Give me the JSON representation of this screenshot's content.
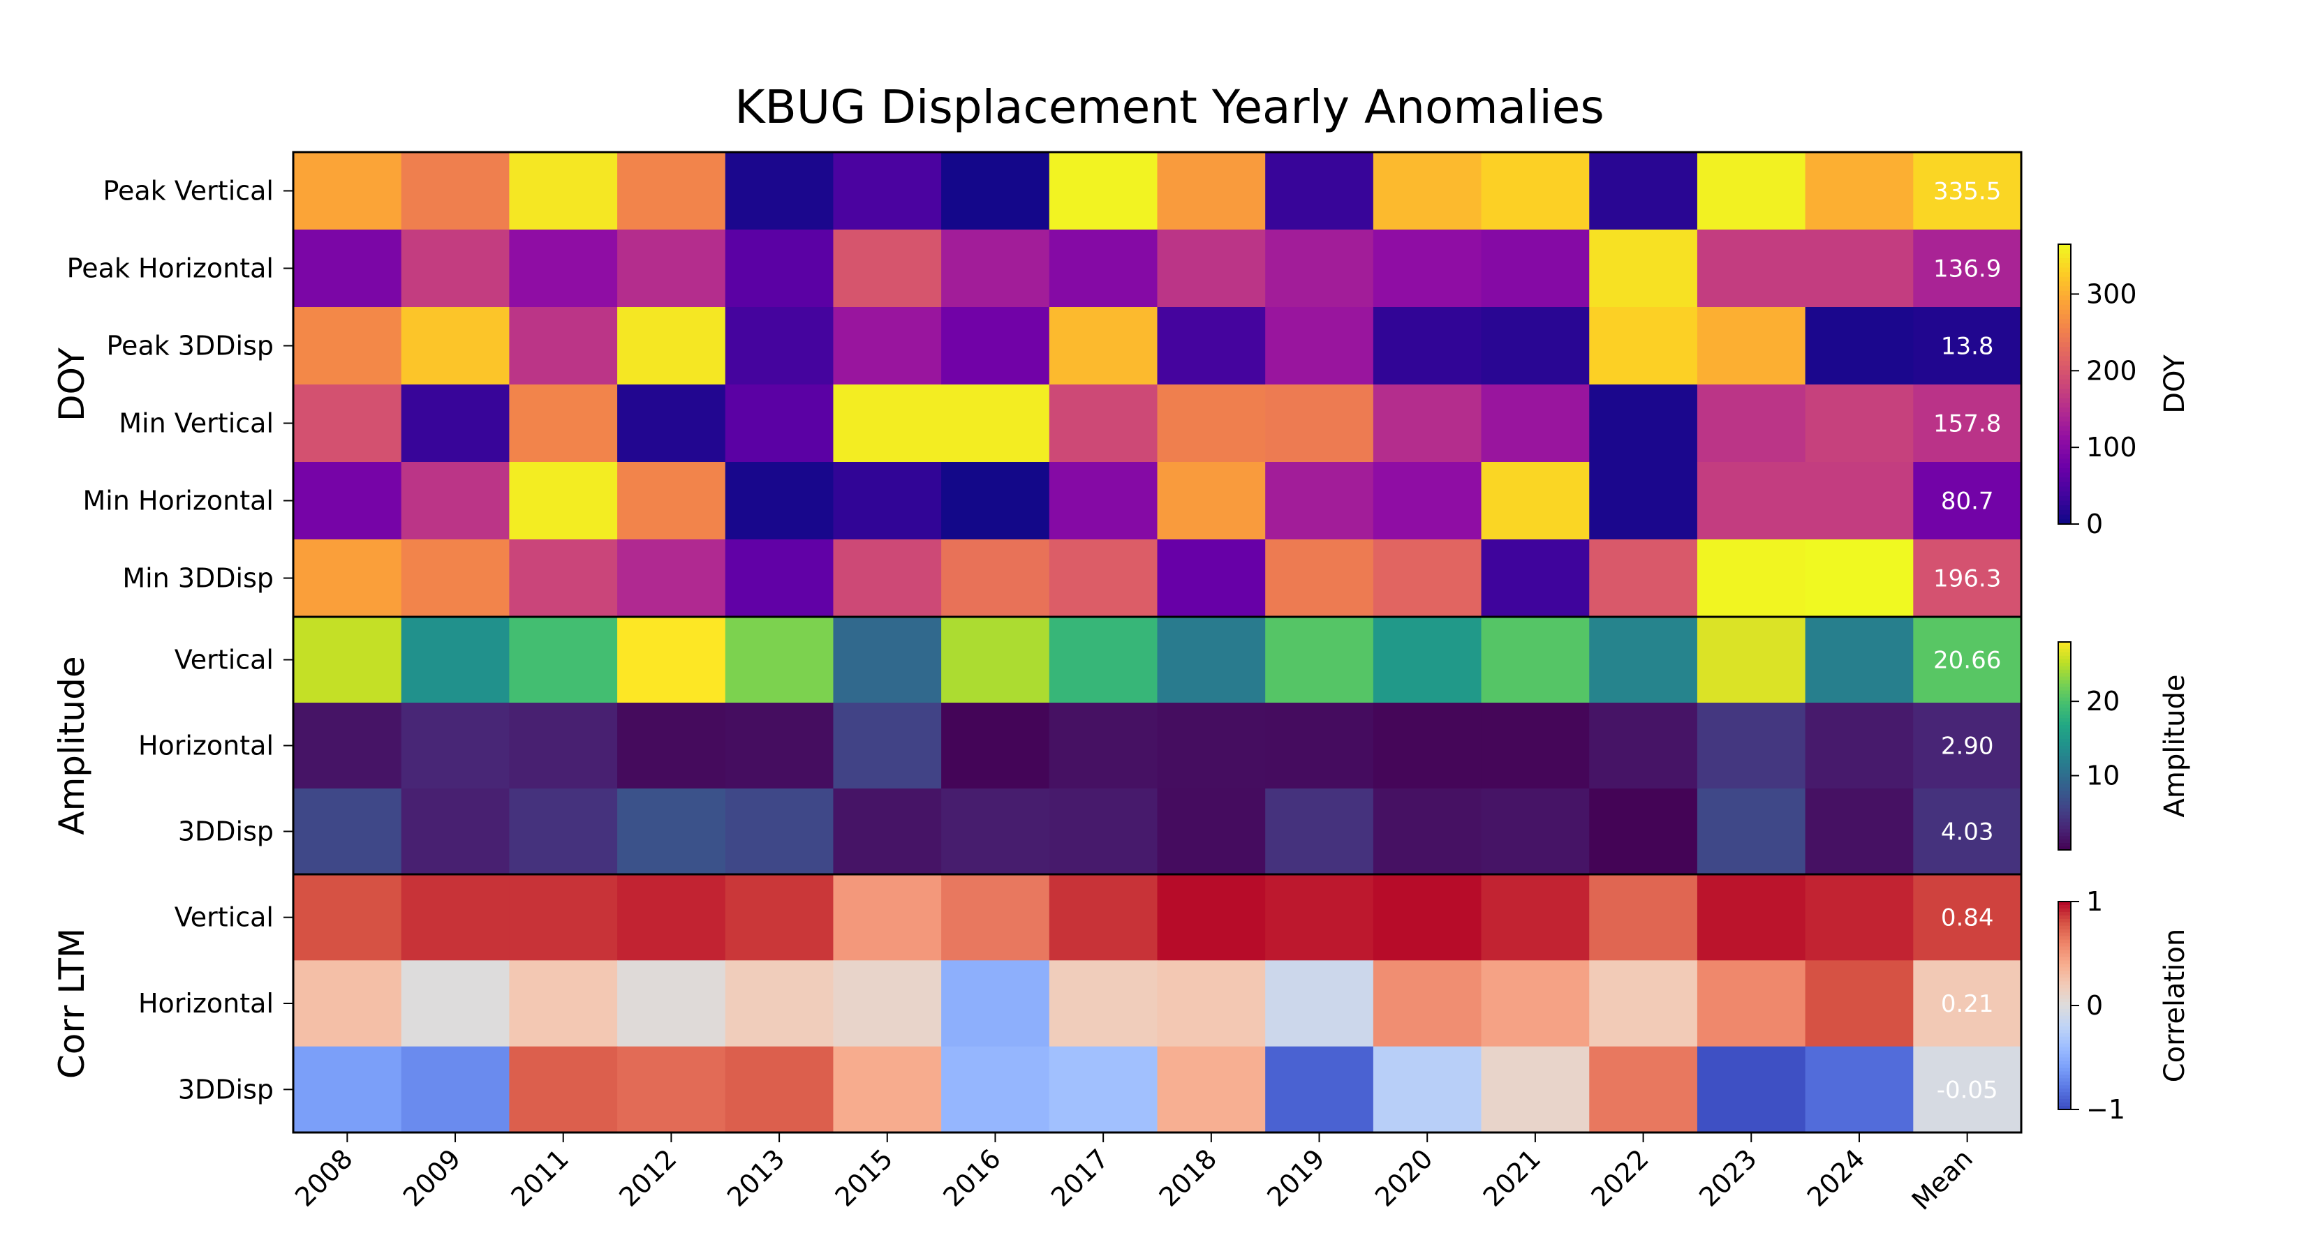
{
  "chart_data": {
    "type": "heatmap",
    "title": "KBUG Displacement Yearly Anomalies",
    "columns": [
      "2008",
      "2009",
      "2011",
      "2012",
      "2013",
      "2015",
      "2016",
      "2017",
      "2018",
      "2019",
      "2020",
      "2021",
      "2022",
      "2023",
      "2024",
      "Mean"
    ],
    "panels": [
      {
        "group_label": "DOY",
        "colormap": "plasma",
        "colorbar": {
          "label": "DOY",
          "ticks": [
            "0",
            "100",
            "200",
            "300"
          ],
          "range": [
            0,
            365
          ]
        },
        "rows": [
          {
            "label": "Peak Vertical",
            "values": [
              290,
              250,
              350,
              255,
              10,
              45,
              5,
              360,
              280,
              30,
              310,
              330,
              20,
              358,
              300,
              335.5
            ],
            "mean_label": "335.5"
          },
          {
            "label": "Peak Horizontal",
            "values": [
              90,
              170,
              110,
              150,
              60,
              200,
              130,
              100,
              160,
              130,
              110,
              100,
              345,
              170,
              170,
              136.9
            ],
            "mean_label": "136.9"
          },
          {
            "label": "Peak 3DDisp",
            "values": [
              260,
              320,
              160,
              350,
              40,
              120,
              80,
              310,
              40,
              120,
              25,
              20,
              330,
              300,
              10,
              13.8
            ],
            "mean_label": "13.8"
          },
          {
            "label": "Min Vertical",
            "values": [
              195,
              30,
              255,
              15,
              60,
              355,
              355,
              185,
              250,
              245,
              150,
              120,
              10,
              160,
              175,
              157.8
            ],
            "mean_label": "157.8"
          },
          {
            "label": "Min Horizontal",
            "values": [
              85,
              160,
              355,
              255,
              8,
              25,
              4,
              100,
              280,
              130,
              110,
              335,
              10,
              170,
              170,
              80.7
            ],
            "mean_label": "80.7"
          },
          {
            "label": "Min 3DDisp",
            "values": [
              285,
              255,
              180,
              145,
              65,
              185,
              235,
              210,
              70,
              245,
              220,
              35,
              205,
              362,
              365,
              196.3
            ],
            "mean_label": "196.3"
          }
        ]
      },
      {
        "group_label": "Amplitude",
        "colormap": "viridis",
        "colorbar": {
          "label": "Amplitude",
          "ticks": [
            "10",
            "20"
          ],
          "range": [
            0,
            28
          ]
        },
        "rows": [
          {
            "label": "Vertical",
            "values": [
              25.5,
              14,
              19.5,
              28,
              22.5,
              9.5,
              24.5,
              18.5,
              11.5,
              20.5,
              15,
              20.5,
              12.5,
              26.5,
              12,
              20.66
            ],
            "mean_label": "20.66"
          },
          {
            "label": "Horizontal",
            "values": [
              1.5,
              3,
              2.5,
              0.8,
              1,
              5.5,
              0.3,
              1.3,
              1,
              0.9,
              0.4,
              0.4,
              1.5,
              4.5,
              2,
              2.9
            ],
            "mean_label": "2.90"
          },
          {
            "label": "3DDisp",
            "values": [
              6,
              2.5,
              4,
              7,
              6,
              1.5,
              2.2,
              2,
              0.9,
              4,
              1.3,
              1.5,
              0.2,
              6,
              1.3,
              4.03
            ],
            "mean_label": "4.03"
          }
        ]
      },
      {
        "group_label": "Corr LTM",
        "colormap": "coolwarm",
        "colorbar": {
          "label": "Correlation",
          "ticks": [
            "−1",
            "0",
            "1"
          ],
          "range": [
            -1,
            1
          ]
        },
        "rows": [
          {
            "label": "Vertical",
            "values": [
              0.8,
              0.88,
              0.88,
              0.92,
              0.87,
              0.5,
              0.65,
              0.88,
              0.98,
              0.95,
              0.98,
              0.92,
              0.72,
              0.96,
              0.92,
              0.84
            ],
            "mean_label": "0.84"
          },
          {
            "label": "Horizontal",
            "values": [
              0.28,
              0.0,
              0.22,
              0.02,
              0.18,
              0.1,
              -0.5,
              0.18,
              0.22,
              -0.12,
              0.55,
              0.45,
              0.2,
              0.58,
              0.8,
              0.21
            ],
            "mean_label": "0.21"
          },
          {
            "label": "3DDisp",
            "values": [
              -0.6,
              -0.7,
              0.75,
              0.7,
              0.75,
              0.4,
              -0.45,
              -0.38,
              0.38,
              -0.9,
              -0.25,
              0.1,
              0.65,
              -0.98,
              -0.85,
              -0.05
            ],
            "mean_label": "-0.05"
          }
        ]
      }
    ]
  }
}
